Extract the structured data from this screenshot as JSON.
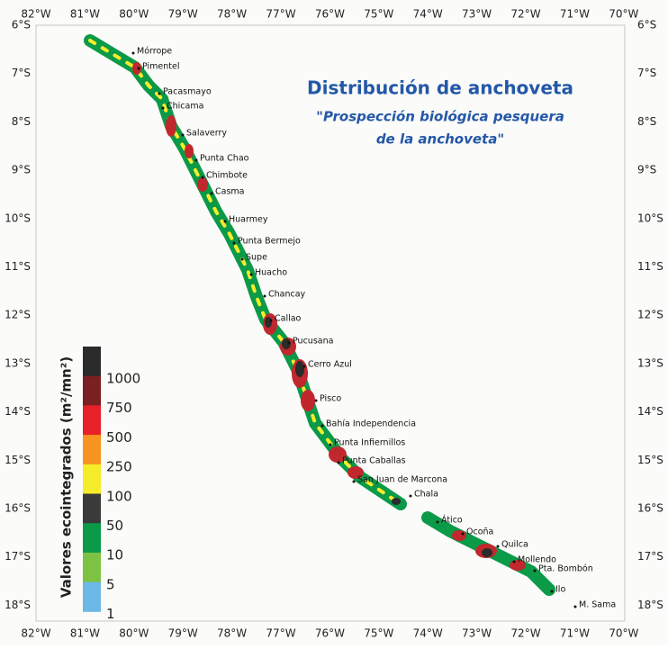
{
  "map": {
    "title": "Distribución de anchoveta",
    "subtitle_lines": [
      "\"Prospección biológica pesquera",
      "de la anchoveta\""
    ],
    "longitude_labels": [
      "82°W",
      "81°W",
      "80°W",
      "79°W",
      "78°W",
      "77°W",
      "76°W",
      "75°W",
      "74°W",
      "73°W",
      "72°W",
      "71°W",
      "70°W"
    ],
    "latitude_labels": [
      "6°S",
      "7°S",
      "8°S",
      "9°S",
      "10°S",
      "11°S",
      "12°S",
      "13°S",
      "14°S",
      "15°S",
      "16°S",
      "17°S",
      "18°S"
    ],
    "places": [
      "Mórrope",
      "Pimentel",
      "Pacasmayo",
      "Chicama",
      "Salaverry",
      "Punta Chao",
      "Chimbote",
      "Casma",
      "Huarmey",
      "Punta Bermejo",
      "Supe",
      "Huacho",
      "Chancay",
      "Callao",
      "Pucusana",
      "Cerro Azul",
      "Pisco",
      "Bahía Independencia",
      "Punta Infiernillos",
      "Punta Caballas",
      "San Juan de Marcona",
      "Chala",
      "Ático",
      "Ocoña",
      "Quilca",
      "Mollendo",
      "Pta. Bombón",
      "Ilo",
      "M. Sama"
    ],
    "legend": {
      "title": "Valores ecointegrados (m²/mn²)",
      "labels": [
        "1000",
        "750",
        "500",
        "250",
        "100",
        "50",
        "10",
        "5",
        "1"
      ],
      "colors": [
        "#2b2b2b",
        "#7a1f22",
        "#e8202a",
        "#f7931e",
        "#f5ec2a",
        "#3a3a3a",
        "#0a9a48",
        "#7dc242",
        "#6cb8e6"
      ]
    }
  }
}
